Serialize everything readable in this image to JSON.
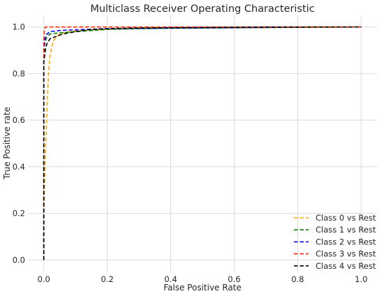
{
  "chart_data": {
    "type": "line",
    "title": "Multiclass Receiver Operating Characteristic",
    "xlabel": "False Positive Rate",
    "ylabel": "True Positive rate",
    "xlim": [
      -0.05,
      1.05
    ],
    "ylim": [
      -0.05,
      1.05
    ],
    "xticks": [
      0.0,
      0.2,
      0.4,
      0.6,
      0.8,
      1.0
    ],
    "yticks": [
      0.0,
      0.2,
      0.4,
      0.6,
      0.8,
      1.0
    ],
    "xtick_labels": [
      "0.0",
      "0.2",
      "0.4",
      "0.6",
      "0.8",
      "1.0"
    ],
    "ytick_labels": [
      "0.0",
      "0.2",
      "0.4",
      "0.6",
      "0.8",
      "1.0"
    ],
    "grid": true,
    "legend_position": "lower-right",
    "line_style": "dashed",
    "series": [
      {
        "name": "Class 0 vs Rest",
        "color": "#FFA500",
        "x": [
          0.0,
          0.0,
          0.005,
          0.01,
          0.015,
          0.02,
          0.03,
          0.05,
          0.1,
          0.2,
          0.3,
          1.0
        ],
        "y": [
          0.0,
          0.2,
          0.45,
          0.65,
          0.8,
          0.88,
          0.94,
          0.97,
          0.985,
          0.99,
          0.995,
          1.0
        ]
      },
      {
        "name": "Class 1 vs Rest",
        "color": "#008000",
        "x": [
          0.0,
          0.0,
          0.003,
          0.01,
          0.02,
          0.05,
          0.1,
          0.15,
          0.2,
          0.4,
          1.0
        ],
        "y": [
          0.0,
          0.85,
          0.93,
          0.96,
          0.97,
          0.975,
          0.98,
          0.985,
          0.99,
          0.995,
          1.0
        ]
      },
      {
        "name": "Class 2 vs Rest",
        "color": "#0000FF",
        "x": [
          0.0,
          0.0,
          0.005,
          0.01,
          0.02,
          0.05,
          0.1,
          0.15,
          0.2,
          0.5,
          0.85,
          1.0
        ],
        "y": [
          0.0,
          0.9,
          0.96,
          0.97,
          0.98,
          0.985,
          0.988,
          0.99,
          0.993,
          0.996,
          1.0,
          1.0
        ]
      },
      {
        "name": "Class 3 vs Rest",
        "color": "#FF2400",
        "x": [
          0.0,
          0.0,
          0.002,
          0.005,
          0.3,
          1.0
        ],
        "y": [
          0.0,
          0.94,
          0.99,
          1.0,
          1.0,
          1.0
        ]
      },
      {
        "name": "Class 4 vs Rest",
        "color": "#000000",
        "x": [
          0.0,
          0.0,
          0.005,
          0.01,
          0.02,
          0.04,
          0.06,
          0.1,
          0.15,
          0.2,
          0.3,
          0.5,
          0.7,
          1.0
        ],
        "y": [
          0.0,
          0.85,
          0.9,
          0.93,
          0.95,
          0.96,
          0.97,
          0.98,
          0.99,
          0.993,
          0.996,
          0.998,
          1.0,
          1.0
        ]
      }
    ]
  }
}
